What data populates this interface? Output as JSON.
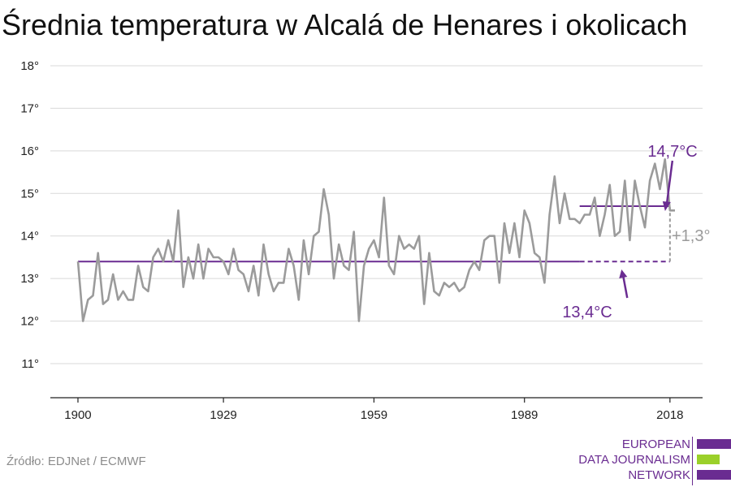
{
  "chart_data": {
    "type": "line",
    "title": "Średnia temperatura w Alcalá de Henares i okolicach",
    "xlabel": "",
    "ylabel": "",
    "x_ticks": [
      "1900",
      "1929",
      "1959",
      "1989",
      "2018"
    ],
    "x_tick_values": [
      1900,
      1929,
      1959,
      1989,
      2018
    ],
    "y_ticks": [
      "11°",
      "12°",
      "13°",
      "14°",
      "15°",
      "16°",
      "17°",
      "18°"
    ],
    "y_tick_values": [
      11,
      12,
      13,
      14,
      15,
      16,
      17,
      18
    ],
    "ylim": [
      10.2,
      18.4
    ],
    "xlim": [
      1894.5,
      2024.5
    ],
    "grid": true,
    "series": [
      {
        "color": "#9b9b9b",
        "x": [
          1900,
          1901,
          1902,
          1903,
          1904,
          1905,
          1906,
          1907,
          1908,
          1909,
          1910,
          1911,
          1912,
          1913,
          1914,
          1915,
          1916,
          1917,
          1918,
          1919,
          1920,
          1921,
          1922,
          1923,
          1924,
          1925,
          1926,
          1927,
          1928,
          1929,
          1930,
          1931,
          1932,
          1933,
          1934,
          1935,
          1936,
          1937,
          1938,
          1939,
          1940,
          1941,
          1942,
          1943,
          1944,
          1945,
          1946,
          1947,
          1948,
          1949,
          1950,
          1951,
          1952,
          1953,
          1954,
          1955,
          1956,
          1957,
          1958,
          1959,
          1960,
          1961,
          1962,
          1963,
          1964,
          1965,
          1966,
          1967,
          1968,
          1969,
          1970,
          1971,
          1972,
          1973,
          1974,
          1975,
          1976,
          1977,
          1978,
          1979,
          1980,
          1981,
          1982,
          1983,
          1984,
          1985,
          1986,
          1987,
          1988,
          1989,
          1990,
          1991,
          1992,
          1993,
          1994,
          1995,
          1996,
          1997,
          1998,
          1999,
          2000,
          2001,
          2002,
          2003,
          2004,
          2005,
          2006,
          2007,
          2008,
          2009,
          2010,
          2011,
          2012,
          2013,
          2014,
          2015,
          2016,
          2017,
          2018,
          2019
        ],
        "y": [
          13.4,
          12.0,
          12.5,
          12.6,
          13.6,
          12.4,
          12.5,
          13.1,
          12.5,
          12.7,
          12.5,
          12.5,
          13.3,
          12.8,
          12.7,
          13.5,
          13.7,
          13.4,
          13.9,
          13.4,
          14.6,
          12.8,
          13.5,
          13.0,
          13.8,
          13.0,
          13.7,
          13.5,
          13.5,
          13.4,
          13.1,
          13.7,
          13.2,
          13.1,
          12.7,
          13.3,
          12.6,
          13.8,
          13.1,
          12.7,
          12.9,
          12.9,
          13.7,
          13.3,
          12.5,
          13.9,
          13.1,
          14.0,
          14.1,
          15.1,
          14.5,
          13.0,
          13.8,
          13.3,
          13.2,
          14.1,
          12.0,
          13.3,
          13.7,
          13.9,
          13.5,
          14.9,
          13.3,
          13.1,
          14.0,
          13.7,
          13.8,
          13.7,
          14.0,
          12.4,
          13.6,
          12.7,
          12.6,
          12.9,
          12.8,
          12.9,
          12.7,
          12.8,
          13.2,
          13.4,
          13.2,
          13.9,
          14.0,
          14.0,
          12.9,
          14.3,
          13.6,
          14.3,
          13.5,
          14.6,
          14.3,
          13.6,
          13.5,
          12.9,
          14.5,
          15.4,
          14.3,
          15.0,
          14.4,
          14.4,
          14.3,
          14.5,
          14.5,
          14.9,
          14.0,
          14.5,
          15.2,
          14.0,
          14.1,
          15.3,
          13.9,
          15.3,
          14.7,
          14.2,
          15.3,
          15.7,
          15.1,
          15.8,
          14.6,
          14.6
        ]
      }
    ],
    "reference_lines": [
      {
        "color": "#6a2c91",
        "y": 13.4,
        "x_from": 1900,
        "x_to": 2018,
        "dashed_from": 2000
      },
      {
        "color": "#6a2c91",
        "y": 14.7,
        "x_from": 2000,
        "x_to": 2018
      }
    ],
    "annotations": {
      "avg_1900": "13,4°C",
      "avg_recent": "14,7°C",
      "difference": "+1,3°"
    }
  },
  "source": "Źródło: EDJNet / ECMWF",
  "logo": {
    "line1": "EUROPEAN",
    "line2": "DATA JOURNALISM",
    "line3": "NETWORK"
  },
  "colors": {
    "series": "#9b9b9b",
    "accent": "#6a2c91",
    "logo_green": "#9bd02a",
    "grid": "#d9d9d9"
  }
}
